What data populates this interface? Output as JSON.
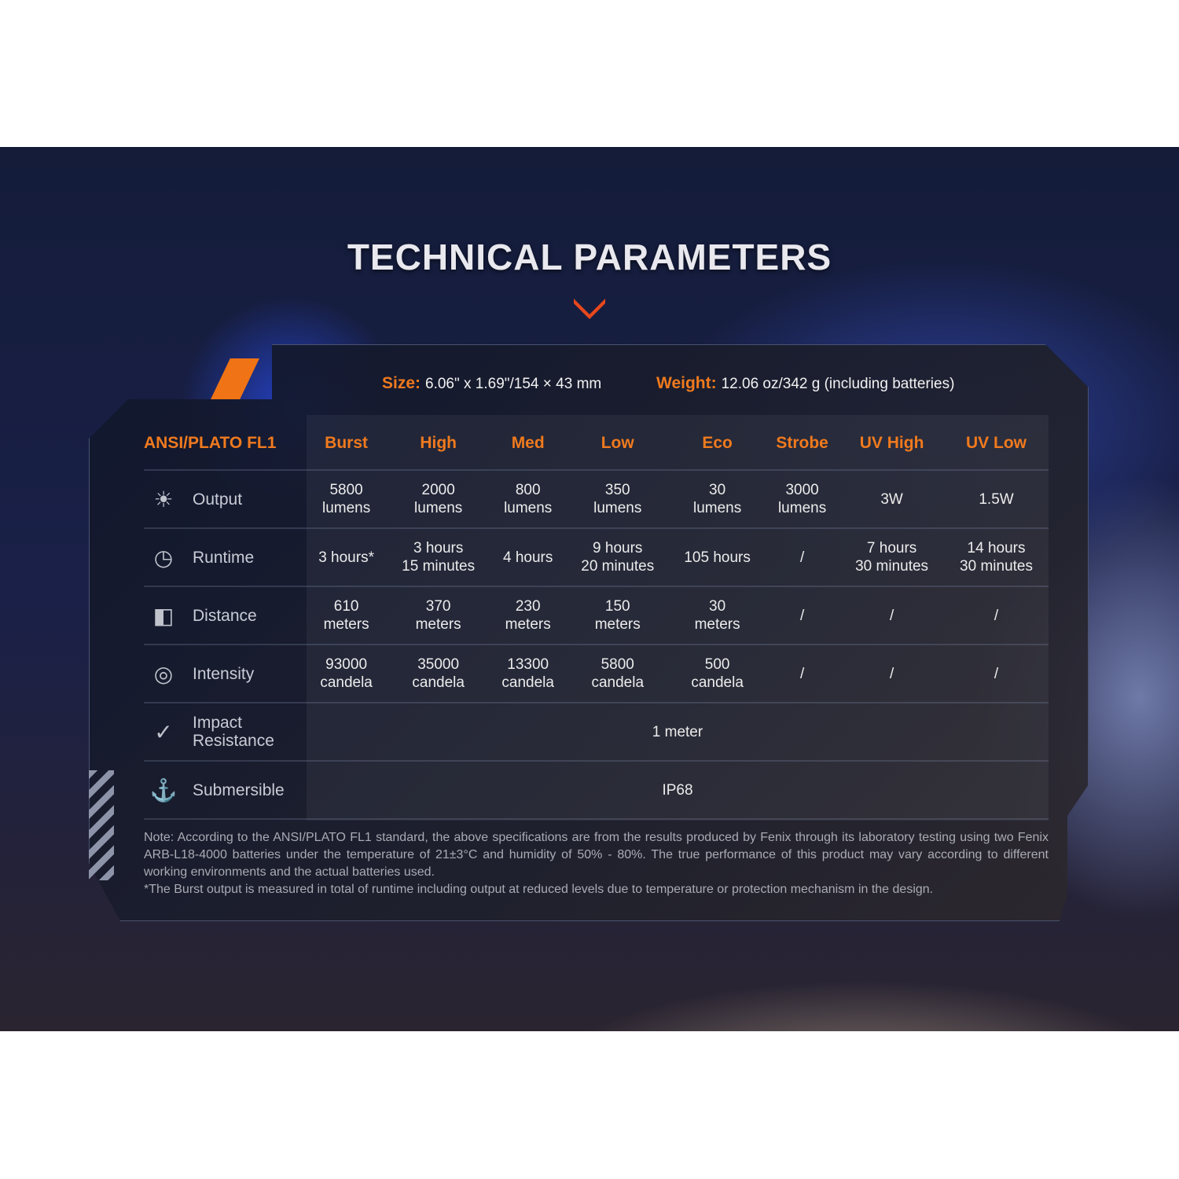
{
  "title": "TECHNICAL PARAMETERS",
  "accent_color": "#f07316",
  "size": {
    "label": "Size:",
    "value": "6.06\" x 1.69\"/154 × 43 mm"
  },
  "weight": {
    "label": "Weight:",
    "value": "12.06 oz/342 g (including batteries)"
  },
  "table": {
    "corner": "ANSI/PLATO FL1",
    "columns": [
      "Burst",
      "High",
      "Med",
      "Low",
      "Eco",
      "Strobe",
      "UV High",
      "UV Low"
    ],
    "rows": [
      {
        "label": "Output",
        "icon": "light-burst-icon",
        "cells": [
          [
            "5800",
            "lumens"
          ],
          [
            "2000",
            "lumens"
          ],
          [
            "800",
            "lumens"
          ],
          [
            "350",
            "lumens"
          ],
          [
            "30",
            "lumens"
          ],
          [
            "3000",
            "lumens"
          ],
          [
            "3W"
          ],
          [
            "1.5W"
          ]
        ]
      },
      {
        "label": "Runtime",
        "icon": "clock-icon",
        "cells": [
          [
            "3 hours*"
          ],
          [
            "3 hours",
            "15 minutes"
          ],
          [
            "4 hours"
          ],
          [
            "9 hours",
            "20 minutes"
          ],
          [
            "105 hours"
          ],
          [
            "/"
          ],
          [
            "7 hours",
            "30 minutes"
          ],
          [
            "14 hours",
            "30 minutes"
          ]
        ]
      },
      {
        "label": "Distance",
        "icon": "beam-distance-icon",
        "cells": [
          [
            "610",
            "meters"
          ],
          [
            "370",
            "meters"
          ],
          [
            "230",
            "meters"
          ],
          [
            "150",
            "meters"
          ],
          [
            "30",
            "meters"
          ],
          [
            "/"
          ],
          [
            "/"
          ],
          [
            "/"
          ]
        ]
      },
      {
        "label": "Intensity",
        "icon": "target-icon",
        "cells": [
          [
            "93000",
            "candela"
          ],
          [
            "35000",
            "candela"
          ],
          [
            "13300",
            "candela"
          ],
          [
            "5800",
            "candela"
          ],
          [
            "500",
            "candela"
          ],
          [
            "/"
          ],
          [
            "/"
          ],
          [
            "/"
          ]
        ]
      }
    ],
    "impact": {
      "label": [
        "Impact",
        "Resistance"
      ],
      "icon": "impact-icon",
      "value": "1 meter"
    },
    "submersible": {
      "label": "Submersible",
      "icon": "water-icon",
      "value": "IP68"
    }
  },
  "note": [
    "Note: According to the ANSI/PLATO FL1 standard, the above specifications are from the results produced by Fenix through its laboratory testing using two Fenix ARB-L18-4000 batteries under the temperature of 21±3°C and humidity of 50% - 80%. The true performance of this product may vary according to different working environments and the actual batteries used.",
    "*The Burst output is measured in total of runtime including output at reduced levels due to temperature or protection mechanism in the design."
  ]
}
